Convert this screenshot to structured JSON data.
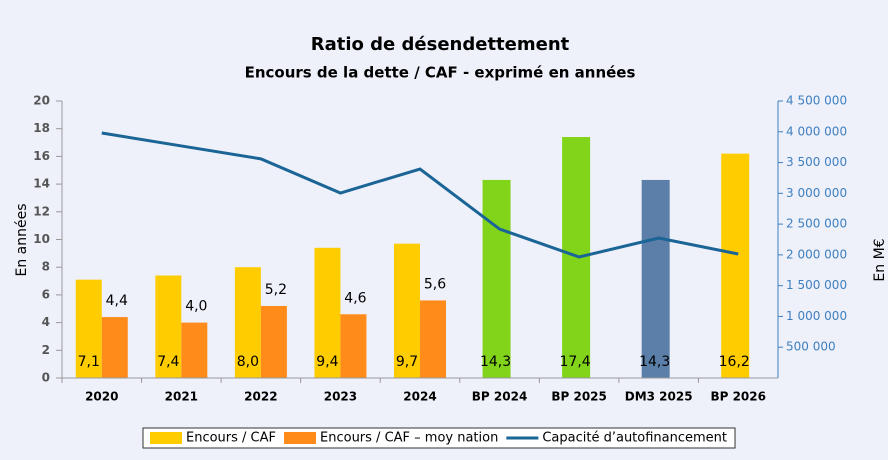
{
  "chart_data": {
    "type": "bar",
    "title": "Ratio de désendettement",
    "subtitle": "Encours de la dette / CAF - exprimé en années",
    "ylabel": "En années",
    "y2label": "En M€",
    "categories": [
      "2020",
      "2021",
      "2022",
      "2023",
      "2024",
      "BP 2024",
      "BP 2025",
      "DM3 2025",
      "BP 2026"
    ],
    "series": [
      {
        "name": "Encours / CAF",
        "type": "bar",
        "color": "#ffcc00",
        "colors": [
          "#ffcc00",
          "#ffcc00",
          "#ffcc00",
          "#ffcc00",
          "#ffcc00",
          "#81d41a",
          "#81d41a",
          "#5b7fa8",
          "#ffcc00"
        ],
        "values": [
          7.1,
          7.4,
          8.0,
          9.4,
          9.7,
          14.3,
          17.4,
          14.3,
          16.2
        ],
        "value_labels": [
          "7,1",
          "7,4",
          "8,0",
          "9,4",
          "9,7",
          "14,3",
          "17,4",
          "14,3",
          "16,2"
        ]
      },
      {
        "name": "Encours  / CAF – moy nation",
        "type": "bar",
        "color": "#ff8c1a",
        "values": [
          4.4,
          4.0,
          5.2,
          4.6,
          5.6,
          null,
          null,
          null,
          null
        ],
        "value_labels": [
          "4,4",
          "4,0",
          "5,2",
          "4,6",
          "5,6",
          null,
          null,
          null,
          null
        ]
      },
      {
        "name": "Capacité d’autofinancement",
        "type": "line",
        "axis": "y2",
        "color": "#1a6496",
        "values": [
          3980000,
          3770000,
          3560000,
          3005000,
          3395000,
          2420000,
          1966000,
          2274000,
          2014000
        ]
      }
    ],
    "ylim": [
      0,
      20
    ],
    "yticks": [
      0,
      2,
      4,
      6,
      8,
      10,
      12,
      14,
      16,
      18,
      20
    ],
    "y2lim": [
      0,
      4500000
    ],
    "y2ticks": [
      {
        "value": 500000,
        "label": "500 000"
      },
      {
        "value": 1000000,
        "label": "1 000 000"
      },
      {
        "value": 1500000,
        "label": "1 500 000"
      },
      {
        "value": 2000000,
        "label": "2 000 000"
      },
      {
        "value": 2500000,
        "label": "2 500 000"
      },
      {
        "value": 3000000,
        "label": "3 000 000"
      },
      {
        "value": 3500000,
        "label": "3 500 000"
      },
      {
        "value": 4000000,
        "label": "4 000 000"
      },
      {
        "value": 4500000,
        "label": "4 500 000"
      }
    ],
    "legend": "bottom"
  }
}
